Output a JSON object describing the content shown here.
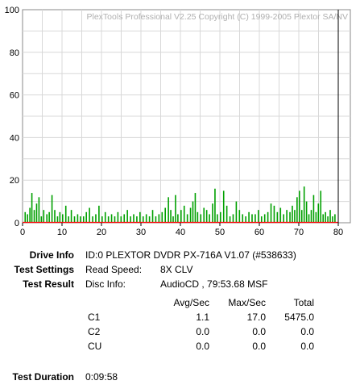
{
  "chart_data": {
    "type": "bar",
    "title": "PlexTools Professional V2.25 Copyright (C) 1999-2005 Plextor SA/NV",
    "xlabel": "",
    "ylabel": "",
    "xlim": [
      0,
      80
    ],
    "ylim": [
      0,
      100
    ],
    "x_ticks": [
      "0",
      "10",
      "20",
      "30",
      "40",
      "50",
      "60",
      "70",
      "80"
    ],
    "y_ticks": [
      "0",
      "20",
      "40",
      "60",
      "80",
      "100"
    ],
    "grid": true,
    "series": [
      {
        "type": "bar",
        "color": "#00a000",
        "x": [
          0.5,
          1.1,
          1.7,
          2.2,
          2.8,
          3.4,
          4.0,
          4.6,
          5.2,
          6.0,
          6.6,
          7.3,
          8.0,
          8.7,
          9.3,
          10.0,
          10.8,
          11.5,
          12.2,
          13.0,
          13.8,
          14.5,
          15.3,
          16.0,
          16.8,
          17.6,
          18.4,
          19.2,
          20.0,
          20.8,
          21.6,
          22.4,
          23.2,
          24.0,
          24.8,
          25.6,
          26.4,
          27.2,
          28.0,
          28.8,
          29.6,
          30.4,
          31.2,
          32.0,
          32.8,
          33.6,
          34.4,
          35.2,
          36.0,
          36.8,
          37.4,
          38.0,
          38.6,
          39.2,
          40.0,
          40.8,
          41.6,
          42.4,
          43.0,
          43.6,
          44.2,
          45.0,
          45.8,
          46.5,
          47.2,
          48.0,
          48.6,
          49.2,
          50.0,
          50.8,
          51.6,
          52.4,
          53.2,
          54.0,
          54.8,
          55.6,
          56.4,
          57.2,
          58.0,
          58.8,
          59.6,
          60.4,
          61.2,
          62.0,
          62.8,
          63.6,
          64.4,
          65.2,
          66.0,
          66.8,
          67.6,
          68.2,
          68.8,
          69.4,
          70.0,
          70.6,
          71.2,
          71.8,
          72.4,
          73.0,
          73.6,
          74.2,
          74.8,
          75.4,
          76.0,
          76.6,
          77.2,
          77.8,
          78.4,
          79.0
        ],
        "values": [
          5,
          4,
          7,
          14,
          6,
          9,
          12,
          3,
          6,
          4,
          5,
          13,
          6,
          3,
          5,
          4,
          8,
          3,
          6,
          3,
          4,
          3,
          3,
          5,
          7,
          3,
          4,
          8,
          3,
          5,
          3,
          4,
          3,
          5,
          3,
          4,
          6,
          3,
          4,
          3,
          5,
          3,
          4,
          3,
          6,
          3,
          4,
          5,
          7,
          12,
          6,
          3,
          13,
          4,
          6,
          8,
          4,
          7,
          10,
          14,
          5,
          4,
          7,
          6,
          4,
          9,
          16,
          4,
          5,
          15,
          8,
          3,
          4,
          10,
          6,
          4,
          3,
          5,
          4,
          4,
          6,
          3,
          4,
          5,
          9,
          8,
          5,
          7,
          4,
          6,
          5,
          8,
          6,
          12,
          15,
          6,
          17,
          10,
          4,
          6,
          13,
          5,
          9,
          15,
          4,
          5,
          3,
          6,
          3,
          4
        ]
      },
      {
        "type": "line",
        "color": "#ff0000",
        "x": [
          0,
          80
        ],
        "values": [
          0,
          0
        ]
      }
    ],
    "annotations": [
      {
        "type": "vline",
        "x": 80,
        "color": "#000000"
      }
    ]
  },
  "info": {
    "drive": {
      "label": "Drive Info",
      "value": "ID:0 PLEXTOR DVDR PX-716A V1.07 (#538633)"
    },
    "settings": {
      "label": "Test Settings",
      "key": "Read Speed:",
      "value": "8X CLV"
    },
    "result": {
      "label": "Test Result",
      "key": "Disc Info:",
      "value": "AudioCD , 79:53.68 MSF"
    },
    "table": {
      "headers": [
        "Avg/Sec",
        "Max/Sec",
        "Total"
      ],
      "rows": [
        {
          "name": "C1",
          "avg": "1.1",
          "max": "17.0",
          "total": "5475.0"
        },
        {
          "name": "C2",
          "avg": "0.0",
          "max": "0.0",
          "total": "0.0"
        },
        {
          "name": "CU",
          "avg": "0.0",
          "max": "0.0",
          "total": "0.0"
        }
      ]
    },
    "duration": {
      "label": "Test Duration",
      "value": "0:09:58"
    }
  }
}
